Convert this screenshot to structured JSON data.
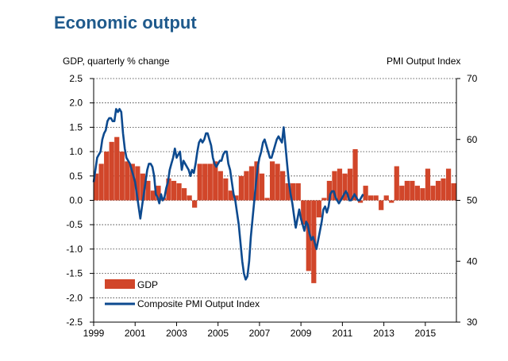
{
  "page": {
    "title": "Economic output"
  },
  "chart_data": {
    "type": "bar+line",
    "title": "Economic output",
    "ylabel_left": "GDP, quarterly % change",
    "ylabel_right": "PMI Output  Index",
    "ylim_left": [
      -2.5,
      2.5
    ],
    "ylim_right": [
      30,
      70
    ],
    "yticks_left": [
      "2.5",
      "2.0",
      "1.5",
      "1.0",
      "0.5",
      "0.0",
      "-0.5",
      "-1.0",
      "-1.5",
      "-2.0",
      "-2.5"
    ],
    "yticks_right": [
      "70",
      "60",
      "50",
      "40",
      "30"
    ],
    "xticks": [
      "1999",
      "2001",
      "2003",
      "2005",
      "2007",
      "2009",
      "2011",
      "2013",
      "2015"
    ],
    "grid": true,
    "legend_position": "bottom-left",
    "colors": {
      "bar": "#d1462a",
      "line": "#0d4a8f",
      "grid": "#333333"
    },
    "series": [
      {
        "name": "GDP",
        "type": "bar",
        "x_start": "1999 Q1",
        "frequency": "quarterly",
        "values": [
          0.55,
          0.75,
          1.0,
          1.2,
          1.3,
          1.0,
          0.8,
          0.75,
          0.7,
          0.55,
          0.4,
          0.2,
          0.3,
          0.05,
          0.45,
          0.4,
          0.35,
          0.25,
          0.1,
          -0.15,
          0.75,
          0.75,
          0.75,
          0.8,
          0.6,
          0.45,
          0.2,
          0.1,
          0.5,
          0.6,
          0.7,
          0.8,
          0.55,
          0.05,
          0.8,
          0.75,
          0.6,
          0.35,
          0.35,
          0.35,
          -0.5,
          -1.45,
          -1.7,
          -0.35,
          0.05,
          0.4,
          0.6,
          0.65,
          0.55,
          0.65,
          1.05,
          -0.05,
          0.3,
          0.1,
          0.1,
          -0.2,
          0.1,
          -0.05,
          0.7,
          0.3,
          0.4,
          0.4,
          0.3,
          0.25,
          0.65,
          0.3,
          0.4,
          0.45,
          0.65,
          0.35
        ],
        "labels": []
      },
      {
        "name": "Composite PMI Output Index",
        "type": "line",
        "x_start": "1999 Jan",
        "frequency": "monthly",
        "values": [
          53,
          55,
          57,
          57.5,
          58,
          60,
          61,
          61.5,
          63,
          63.5,
          63.5,
          63,
          63,
          65,
          64.5,
          65,
          64.5,
          61,
          58.5,
          57,
          56.5,
          56,
          55,
          54,
          53,
          51,
          49,
          47,
          49,
          51,
          53,
          55,
          56,
          56,
          55.5,
          54,
          51,
          50.5,
          49.5,
          51,
          50,
          50.5,
          52,
          53,
          55,
          56,
          57,
          58.5,
          57,
          57.5,
          58,
          55,
          56.5,
          56,
          55.5,
          55,
          54,
          55,
          54.5,
          56,
          58,
          59.5,
          60,
          59.5,
          60,
          61,
          61,
          60,
          59,
          57,
          56,
          55.5,
          56,
          56.5,
          56.5,
          57.5,
          58,
          58,
          56,
          55,
          53,
          51,
          50,
          48,
          46,
          43,
          40,
          38,
          37,
          37.5,
          40,
          44,
          47,
          50,
          53,
          55.5,
          57,
          58,
          59.5,
          60,
          59,
          58,
          57,
          57,
          58,
          59,
          60,
          60.5,
          60,
          59.5,
          62,
          59,
          56,
          53,
          51,
          49.5,
          47.5,
          45.5,
          47,
          48.5,
          47,
          46,
          45,
          46.5,
          46,
          44.5,
          43.5,
          44,
          43,
          42,
          43.5,
          45,
          46.5,
          48.5,
          49,
          48,
          49,
          51,
          51.5,
          51.5,
          50.5,
          50,
          49.5,
          50,
          50.5,
          51,
          51.5,
          51,
          50,
          50,
          50.5,
          51,
          50.5,
          50,
          50,
          50.5,
          51
        ],
        "labels": []
      }
    ]
  }
}
